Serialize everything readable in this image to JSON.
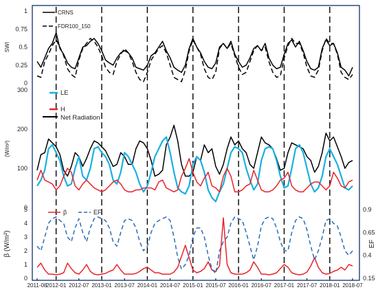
{
  "chart_data": [
    {
      "type": "line",
      "panel": "swi",
      "ylabel": "SWI",
      "ylim": [
        0,
        1
      ],
      "yticks": [
        "0",
        "0.25",
        "0.5",
        "0.75",
        "1"
      ],
      "legend": [
        {
          "name": "CRNS",
          "style": "solid",
          "color": "#000000"
        },
        {
          "name": "FDR100_150",
          "style": "dashed",
          "color": "#000000"
        }
      ],
      "series": [
        {
          "name": "CRNS",
          "style": "solid",
          "color": "#000000",
          "values": [
            0.3,
            0.22,
            0.35,
            0.48,
            0.55,
            0.7,
            0.48,
            0.4,
            0.28,
            0.22,
            0.2,
            0.35,
            0.5,
            0.52,
            0.58,
            0.62,
            0.55,
            0.45,
            0.32,
            0.28,
            0.25,
            0.35,
            0.42,
            0.45,
            0.42,
            0.35,
            0.22,
            0.2,
            0.18,
            0.25,
            0.38,
            0.42,
            0.5,
            0.58,
            0.45,
            0.35,
            0.22,
            0.18,
            0.15,
            0.25,
            0.48,
            0.62,
            0.5,
            0.42,
            0.3,
            0.22,
            0.2,
            0.28,
            0.5,
            0.55,
            0.48,
            0.58,
            0.4,
            0.3,
            0.22,
            0.25,
            0.35,
            0.48,
            0.52,
            0.45,
            0.55,
            0.35,
            0.25,
            0.2,
            0.22,
            0.4,
            0.55,
            0.6,
            0.5,
            0.58,
            0.45,
            0.3,
            0.2,
            0.18,
            0.22,
            0.48,
            0.6,
            0.52,
            0.55,
            0.42,
            0.22,
            0.18,
            0.1,
            0.22
          ]
        },
        {
          "name": "FDR100_150",
          "style": "dashed",
          "color": "#000000",
          "values": [
            0.1,
            0.08,
            0.3,
            0.4,
            0.52,
            0.6,
            0.5,
            0.38,
            0.2,
            0.12,
            0.08,
            0.32,
            0.48,
            0.55,
            0.62,
            0.58,
            0.5,
            0.38,
            0.22,
            0.15,
            0.12,
            0.3,
            0.4,
            0.48,
            0.42,
            0.3,
            0.15,
            0.05,
            0.02,
            0.15,
            0.32,
            0.4,
            0.48,
            0.52,
            0.42,
            0.25,
            0.08,
            0.05,
            0.02,
            0.18,
            0.45,
            0.6,
            0.5,
            0.4,
            0.2,
            0.08,
            0.05,
            0.15,
            0.48,
            0.55,
            0.48,
            0.55,
            0.38,
            0.22,
            0.12,
            0.15,
            0.3,
            0.45,
            0.52,
            0.45,
            0.5,
            0.3,
            0.15,
            0.08,
            0.1,
            0.35,
            0.52,
            0.62,
            0.55,
            0.55,
            0.42,
            0.22,
            0.1,
            0.08,
            0.18,
            0.45,
            0.62,
            0.55,
            0.55,
            0.4,
            0.15,
            0.08,
            0.05,
            0.12
          ]
        }
      ]
    },
    {
      "type": "line",
      "panel": "energy",
      "ylabel": "(W/m²)",
      "ylim": [
        0,
        300
      ],
      "yticks": [
        "0",
        "100",
        "200",
        "300"
      ],
      "legend": [
        {
          "name": "LE",
          "color": "#1ab0e0"
        },
        {
          "name": "H",
          "color": "#e8232a"
        },
        {
          "name": "Net Radiation",
          "color": "#000000"
        }
      ],
      "series": [
        {
          "name": "Net Radiation",
          "color": "#000000",
          "values": [
            95,
            135,
            140,
            175,
            165,
            155,
            135,
            95,
            80,
            105,
            140,
            130,
            105,
            125,
            150,
            170,
            165,
            155,
            145,
            125,
            105,
            110,
            140,
            130,
            110,
            110,
            150,
            170,
            165,
            150,
            120,
            80,
            85,
            95,
            160,
            180,
            210,
            170,
            110,
            80,
            80,
            90,
            130,
            120,
            160,
            140,
            150,
            105,
            85,
            110,
            150,
            180,
            160,
            170,
            150,
            140,
            110,
            100,
            140,
            180,
            165,
            160,
            150,
            125,
            95,
            100,
            140,
            165,
            160,
            155,
            150,
            130,
            120,
            90,
            105,
            140,
            190,
            170,
            180,
            155,
            130,
            100,
            115,
            120
          ]
        },
        {
          "name": "LE",
          "color": "#1ab0e0",
          "values": [
            55,
            70,
            95,
            150,
            160,
            140,
            120,
            80,
            55,
            60,
            100,
            130,
            80,
            70,
            100,
            150,
            155,
            140,
            130,
            110,
            70,
            60,
            90,
            140,
            130,
            110,
            90,
            60,
            40,
            55,
            90,
            130,
            150,
            170,
            180,
            140,
            90,
            50,
            40,
            35,
            55,
            110,
            130,
            120,
            90,
            45,
            25,
            15,
            40,
            60,
            100,
            140,
            155,
            150,
            140,
            100,
            70,
            45,
            60,
            120,
            150,
            155,
            150,
            120,
            80,
            50,
            55,
            100,
            150,
            160,
            140,
            100,
            60,
            40,
            50,
            80,
            130,
            150,
            130,
            110,
            80,
            50,
            45,
            55
          ]
        },
        {
          "name": "H",
          "color": "#e8232a",
          "values": [
            70,
            95,
            70,
            65,
            60,
            45,
            55,
            80,
            100,
            90,
            55,
            45,
            60,
            70,
            60,
            50,
            45,
            40,
            45,
            55,
            65,
            70,
            60,
            45,
            40,
            40,
            45,
            45,
            50,
            50,
            50,
            45,
            65,
            70,
            50,
            45,
            40,
            45,
            80,
            100,
            125,
            90,
            65,
            55,
            75,
            90,
            55,
            50,
            40,
            80,
            100,
            80,
            40,
            40,
            45,
            55,
            60,
            95,
            70,
            45,
            40,
            40,
            45,
            55,
            70,
            75,
            90,
            55,
            45,
            40,
            40,
            50,
            60,
            65,
            65,
            55,
            45,
            55,
            90,
            75,
            55,
            50,
            65,
            70
          ]
        }
      ]
    },
    {
      "type": "line",
      "panel": "beta_ef",
      "ylabel": "β (W/m²)",
      "ylabel_right": "EF",
      "ylim": [
        0,
        5
      ],
      "ylim_right": [
        0.15,
        0.9
      ],
      "yticks": [
        "0",
        "1",
        "2",
        "3",
        "4",
        "5"
      ],
      "yticks_right": [
        "0.15",
        "0.4",
        "0.65",
        "0.9"
      ],
      "xlabel": "",
      "x_tick_labels": [
        "2011-08",
        "2012-01",
        "2012-07",
        "2013-01",
        "2013-07",
        "2014-01",
        "2014-07",
        "2015-01",
        "2015-07",
        "2016-01",
        "2016-07",
        "2017-01",
        "2017-07",
        "2018-01",
        "2018-07"
      ],
      "x_tick_indices": [
        0,
        5,
        11,
        17,
        23,
        29,
        35,
        41,
        47,
        53,
        59,
        65,
        71,
        77,
        83
      ],
      "dashed_year_lines": [
        5,
        17,
        29,
        41,
        53,
        65,
        77
      ],
      "legend": [
        {
          "name": "β",
          "color": "#e8232a",
          "style": "solid"
        },
        {
          "name": "EF",
          "color": "#2b6cb5",
          "style": "dashed"
        }
      ],
      "series": [
        {
          "name": "β",
          "axis": "left",
          "color": "#e8232a",
          "style": "solid",
          "values": [
            0.8,
            1.1,
            0.6,
            0.3,
            0.3,
            0.25,
            0.3,
            0.4,
            1.1,
            0.7,
            0.4,
            0.3,
            0.6,
            1.0,
            0.5,
            0.3,
            0.25,
            0.3,
            0.35,
            0.5,
            0.6,
            1.0,
            0.6,
            0.3,
            0.3,
            0.3,
            0.35,
            0.5,
            0.7,
            0.8,
            0.6,
            0.4,
            0.4,
            0.3,
            0.3,
            0.3,
            0.45,
            0.8,
            1.6,
            2.4,
            1.5,
            0.6,
            0.4,
            0.5,
            0.7,
            1.2,
            0.6,
            0.5,
            0.9,
            4.4,
            1.0,
            0.4,
            0.3,
            0.3,
            0.3,
            0.4,
            0.6,
            1.2,
            0.8,
            0.3,
            0.3,
            0.25,
            0.3,
            0.4,
            0.7,
            1.0,
            0.8,
            0.4,
            0.3,
            0.25,
            0.3,
            0.45,
            0.9,
            1.5,
            0.8,
            0.4,
            0.3,
            0.35,
            0.5,
            0.6,
            0.8,
            0.6,
            1.0,
            0.9
          ]
        },
        {
          "name": "EF",
          "axis": "right",
          "color": "#2b6cb5",
          "style": "dashed",
          "values": [
            0.5,
            0.45,
            0.6,
            0.75,
            0.8,
            0.82,
            0.78,
            0.75,
            0.6,
            0.55,
            0.7,
            0.8,
            0.65,
            0.55,
            0.7,
            0.8,
            0.82,
            0.8,
            0.78,
            0.7,
            0.55,
            0.5,
            0.65,
            0.78,
            0.8,
            0.78,
            0.7,
            0.55,
            0.45,
            0.5,
            0.65,
            0.75,
            0.78,
            0.8,
            0.82,
            0.78,
            0.6,
            0.38,
            0.25,
            0.3,
            0.4,
            0.6,
            0.7,
            0.7,
            0.6,
            0.4,
            0.25,
            0.2,
            0.45,
            0.55,
            0.6,
            0.75,
            0.82,
            0.8,
            0.78,
            0.65,
            0.5,
            0.35,
            0.5,
            0.72,
            0.8,
            0.82,
            0.8,
            0.7,
            0.55,
            0.45,
            0.45,
            0.65,
            0.78,
            0.82,
            0.8,
            0.68,
            0.5,
            0.35,
            0.45,
            0.6,
            0.78,
            0.8,
            0.75,
            0.72,
            0.6,
            0.45,
            0.4,
            0.45
          ]
        }
      ]
    }
  ]
}
